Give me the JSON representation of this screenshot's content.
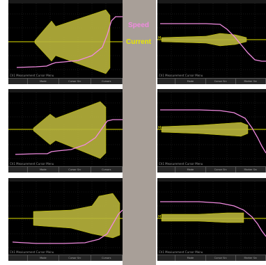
{
  "legend": {
    "speed": "Speed",
    "current": "Current"
  },
  "colors": {
    "speed": "#f08ae0",
    "current": "#e0e000",
    "envelope": "#b8b43c",
    "grid": "#3a3a3a",
    "divider": "#a89f98"
  },
  "footer_text": "Ch1 Measurement Cursor Menu",
  "channel_marker": "M",
  "softkeys": [
    "",
    "Mode",
    "Cursor Src",
    "Cursors",
    "Marker Src"
  ]
}
